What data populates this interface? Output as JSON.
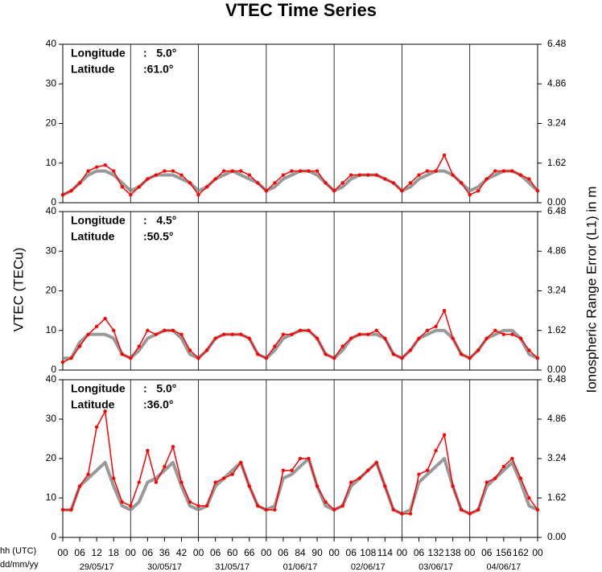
{
  "title": "VTEC Time Series",
  "ylabel": "VTEC (TECu)",
  "y2label": "Ionospheric Range Error (L1) in m",
  "xlabel_hour": "hh (UTC)",
  "xlabel_date": "dd/mm/yy",
  "chart_data": [
    {
      "type": "line",
      "xlim": [
        0,
        168
      ],
      "ylim": [
        0,
        40
      ],
      "yticks": [
        0,
        10,
        20,
        30,
        40
      ],
      "y2lim": [
        0,
        6.48
      ],
      "y2ticks": [
        {
          "value": 0,
          "label": "0.00"
        },
        1.62,
        3.24,
        4.86,
        6.48
      ],
      "xgrid": [
        24,
        48,
        72,
        96,
        120,
        144
      ],
      "annotations": [
        {
          "label": "Longitude",
          "value": ":   5.0°"
        },
        {
          "label": "Latitude",
          "value": ":61.0°"
        }
      ],
      "x": [
        0,
        3,
        6,
        9,
        12,
        15,
        18,
        21,
        24,
        27,
        30,
        33,
        36,
        39,
        42,
        45,
        48,
        51,
        54,
        57,
        60,
        63,
        66,
        69,
        72,
        75,
        78,
        81,
        84,
        87,
        90,
        93,
        96,
        99,
        102,
        105,
        108,
        111,
        114,
        117,
        120,
        123,
        126,
        129,
        132,
        135,
        138,
        141,
        144,
        147,
        150,
        153,
        156,
        159,
        162,
        165,
        168
      ],
      "series": [
        {
          "color": "#808080",
          "values": [
            2,
            3,
            5,
            7,
            8,
            8,
            7,
            5,
            3,
            4,
            6,
            7,
            7,
            7,
            6,
            5,
            3,
            4,
            6,
            7,
            8,
            7,
            6,
            5,
            3,
            4,
            6,
            7,
            8,
            8,
            7,
            5,
            3,
            4,
            6,
            7,
            7,
            7,
            6,
            5,
            3,
            4,
            6,
            7,
            8,
            8,
            7,
            5,
            3,
            4,
            6,
            7,
            8,
            8,
            7,
            5,
            3
          ]
        },
        {
          "color": "#ff0000",
          "values": [
            2,
            3,
            5,
            8,
            9,
            9.5,
            8,
            4,
            2,
            4,
            6,
            7,
            8,
            8,
            7,
            5,
            2,
            4,
            6,
            8,
            8,
            8,
            7,
            5,
            3,
            5,
            7,
            8,
            8,
            8,
            8,
            5,
            3,
            5,
            7,
            7,
            7,
            7,
            6,
            5,
            3,
            5,
            7,
            8,
            8,
            12,
            7,
            5,
            2,
            3,
            6,
            8,
            8,
            8,
            7,
            6,
            3
          ]
        }
      ]
    },
    {
      "type": "line",
      "xlim": [
        0,
        168
      ],
      "ylim": [
        0,
        40
      ],
      "yticks": [
        0,
        10,
        20,
        30,
        40
      ],
      "y2lim": [
        0,
        6.48
      ],
      "y2ticks": [
        {
          "value": 0,
          "label": "0.00"
        },
        1.62,
        3.24,
        4.86,
        6.48
      ],
      "xgrid": [
        24,
        48,
        72,
        96,
        120,
        144
      ],
      "annotations": [
        {
          "label": "Longitude",
          "value": ":   4.5°"
        },
        {
          "label": "Latitude",
          "value": ":50.5°"
        }
      ],
      "x": [
        0,
        3,
        6,
        9,
        12,
        15,
        18,
        21,
        24,
        27,
        30,
        33,
        36,
        39,
        42,
        45,
        48,
        51,
        54,
        57,
        60,
        63,
        66,
        69,
        72,
        75,
        78,
        81,
        84,
        87,
        90,
        93,
        96,
        99,
        102,
        105,
        108,
        111,
        114,
        117,
        120,
        123,
        126,
        129,
        132,
        135,
        138,
        141,
        144,
        147,
        150,
        153,
        156,
        159,
        162,
        165,
        168
      ],
      "series": [
        {
          "color": "#808080",
          "values": [
            3,
            3,
            7,
            9,
            9,
            9,
            8,
            4,
            3,
            5,
            8,
            9,
            10,
            10,
            8,
            4,
            3,
            5,
            8,
            9,
            9,
            9,
            8,
            4,
            3,
            5,
            8,
            9,
            10,
            10,
            8,
            4,
            3,
            5,
            8,
            9,
            9,
            9,
            8,
            4,
            3,
            5,
            8,
            9,
            10,
            10,
            8,
            4,
            3,
            5,
            8,
            9,
            10,
            10,
            8,
            4,
            3
          ]
        },
        {
          "color": "#ff0000",
          "values": [
            2,
            3,
            6,
            9,
            11,
            13,
            10,
            4,
            3,
            6,
            10,
            9,
            10,
            10,
            9,
            5,
            3,
            5,
            8,
            9,
            9,
            9,
            8,
            4,
            3,
            6,
            9,
            9,
            10,
            10,
            8,
            4,
            3,
            6,
            8,
            9,
            9,
            10,
            8,
            4,
            3,
            5,
            8,
            10,
            11,
            15,
            8,
            4,
            3,
            5,
            8,
            10,
            9,
            9,
            8,
            5,
            3
          ]
        }
      ]
    },
    {
      "type": "line",
      "xlim": [
        0,
        168
      ],
      "ylim": [
        0,
        40
      ],
      "yticks": [
        0,
        10,
        20,
        30,
        40
      ],
      "y2lim": [
        0,
        6.48
      ],
      "y2ticks": [
        {
          "value": 0,
          "label": "0.00"
        },
        1.62,
        3.24,
        4.86,
        6.48
      ],
      "xgrid": [
        24,
        48,
        72,
        96,
        120,
        144
      ],
      "xticks": [
        {
          "value": 0,
          "label": "00"
        },
        {
          "value": 6,
          "label": "06"
        },
        12,
        18,
        {
          "value": 24,
          "label": "00"
        },
        {
          "value": 30,
          "label": "06"
        },
        36,
        42,
        {
          "value": 48,
          "label": "00"
        },
        {
          "value": 54,
          "label": "06"
        },
        60,
        66,
        {
          "value": 72,
          "label": "00"
        },
        {
          "value": 78,
          "label": "06"
        },
        84,
        90,
        {
          "value": 96,
          "label": "00"
        },
        {
          "value": 102,
          "label": "06"
        },
        108,
        114,
        {
          "value": 120,
          "label": "00"
        },
        {
          "value": 126,
          "label": "06"
        },
        132,
        138,
        {
          "value": 144,
          "label": "00"
        },
        {
          "value": 150,
          "label": "06"
        },
        156,
        162,
        {
          "value": 168,
          "label": "00"
        }
      ],
      "days": [
        "29/05/17",
        "30/05/17",
        "31/05/17",
        "01/06/17",
        "02/06/17",
        "03/06/17",
        "04/06/17"
      ],
      "annotations": [
        {
          "label": "Longitude",
          "value": ":   5.0°"
        },
        {
          "label": "Latitude",
          "value": ":36.0°"
        }
      ],
      "x": [
        0,
        3,
        6,
        9,
        12,
        15,
        18,
        21,
        24,
        27,
        30,
        33,
        36,
        39,
        42,
        45,
        48,
        51,
        54,
        57,
        60,
        63,
        66,
        69,
        72,
        75,
        78,
        81,
        84,
        87,
        90,
        93,
        96,
        99,
        102,
        105,
        108,
        111,
        114,
        117,
        120,
        123,
        126,
        129,
        132,
        135,
        138,
        141,
        144,
        147,
        150,
        153,
        156,
        159,
        162,
        165,
        168
      ],
      "series": [
        {
          "color": "#808080",
          "values": [
            7,
            7,
            13,
            15,
            17,
            19,
            13,
            8,
            7,
            9,
            14,
            15,
            17,
            19,
            13,
            8,
            7,
            8,
            13,
            15,
            17,
            19,
            13,
            8,
            7,
            8,
            15,
            16,
            18,
            20,
            13,
            8,
            7,
            8,
            13,
            15,
            17,
            19,
            13,
            7,
            6,
            7,
            14,
            16,
            18,
            20,
            13,
            7,
            6,
            7,
            13,
            15,
            17,
            19,
            14,
            8,
            7
          ]
        },
        {
          "color": "#ff0000",
          "values": [
            7,
            7,
            13,
            16,
            28,
            32,
            15,
            9,
            8,
            14,
            22,
            14,
            18,
            23,
            14,
            9,
            8,
            8,
            14,
            15,
            16,
            19,
            13,
            8,
            7,
            7,
            17,
            17,
            20,
            20,
            13,
            9,
            7,
            8,
            14,
            15,
            17,
            19,
            13,
            7,
            6,
            6,
            16,
            17,
            22,
            26,
            13,
            7,
            6,
            7,
            14,
            15,
            18,
            20,
            15,
            10,
            7
          ]
        }
      ]
    }
  ]
}
